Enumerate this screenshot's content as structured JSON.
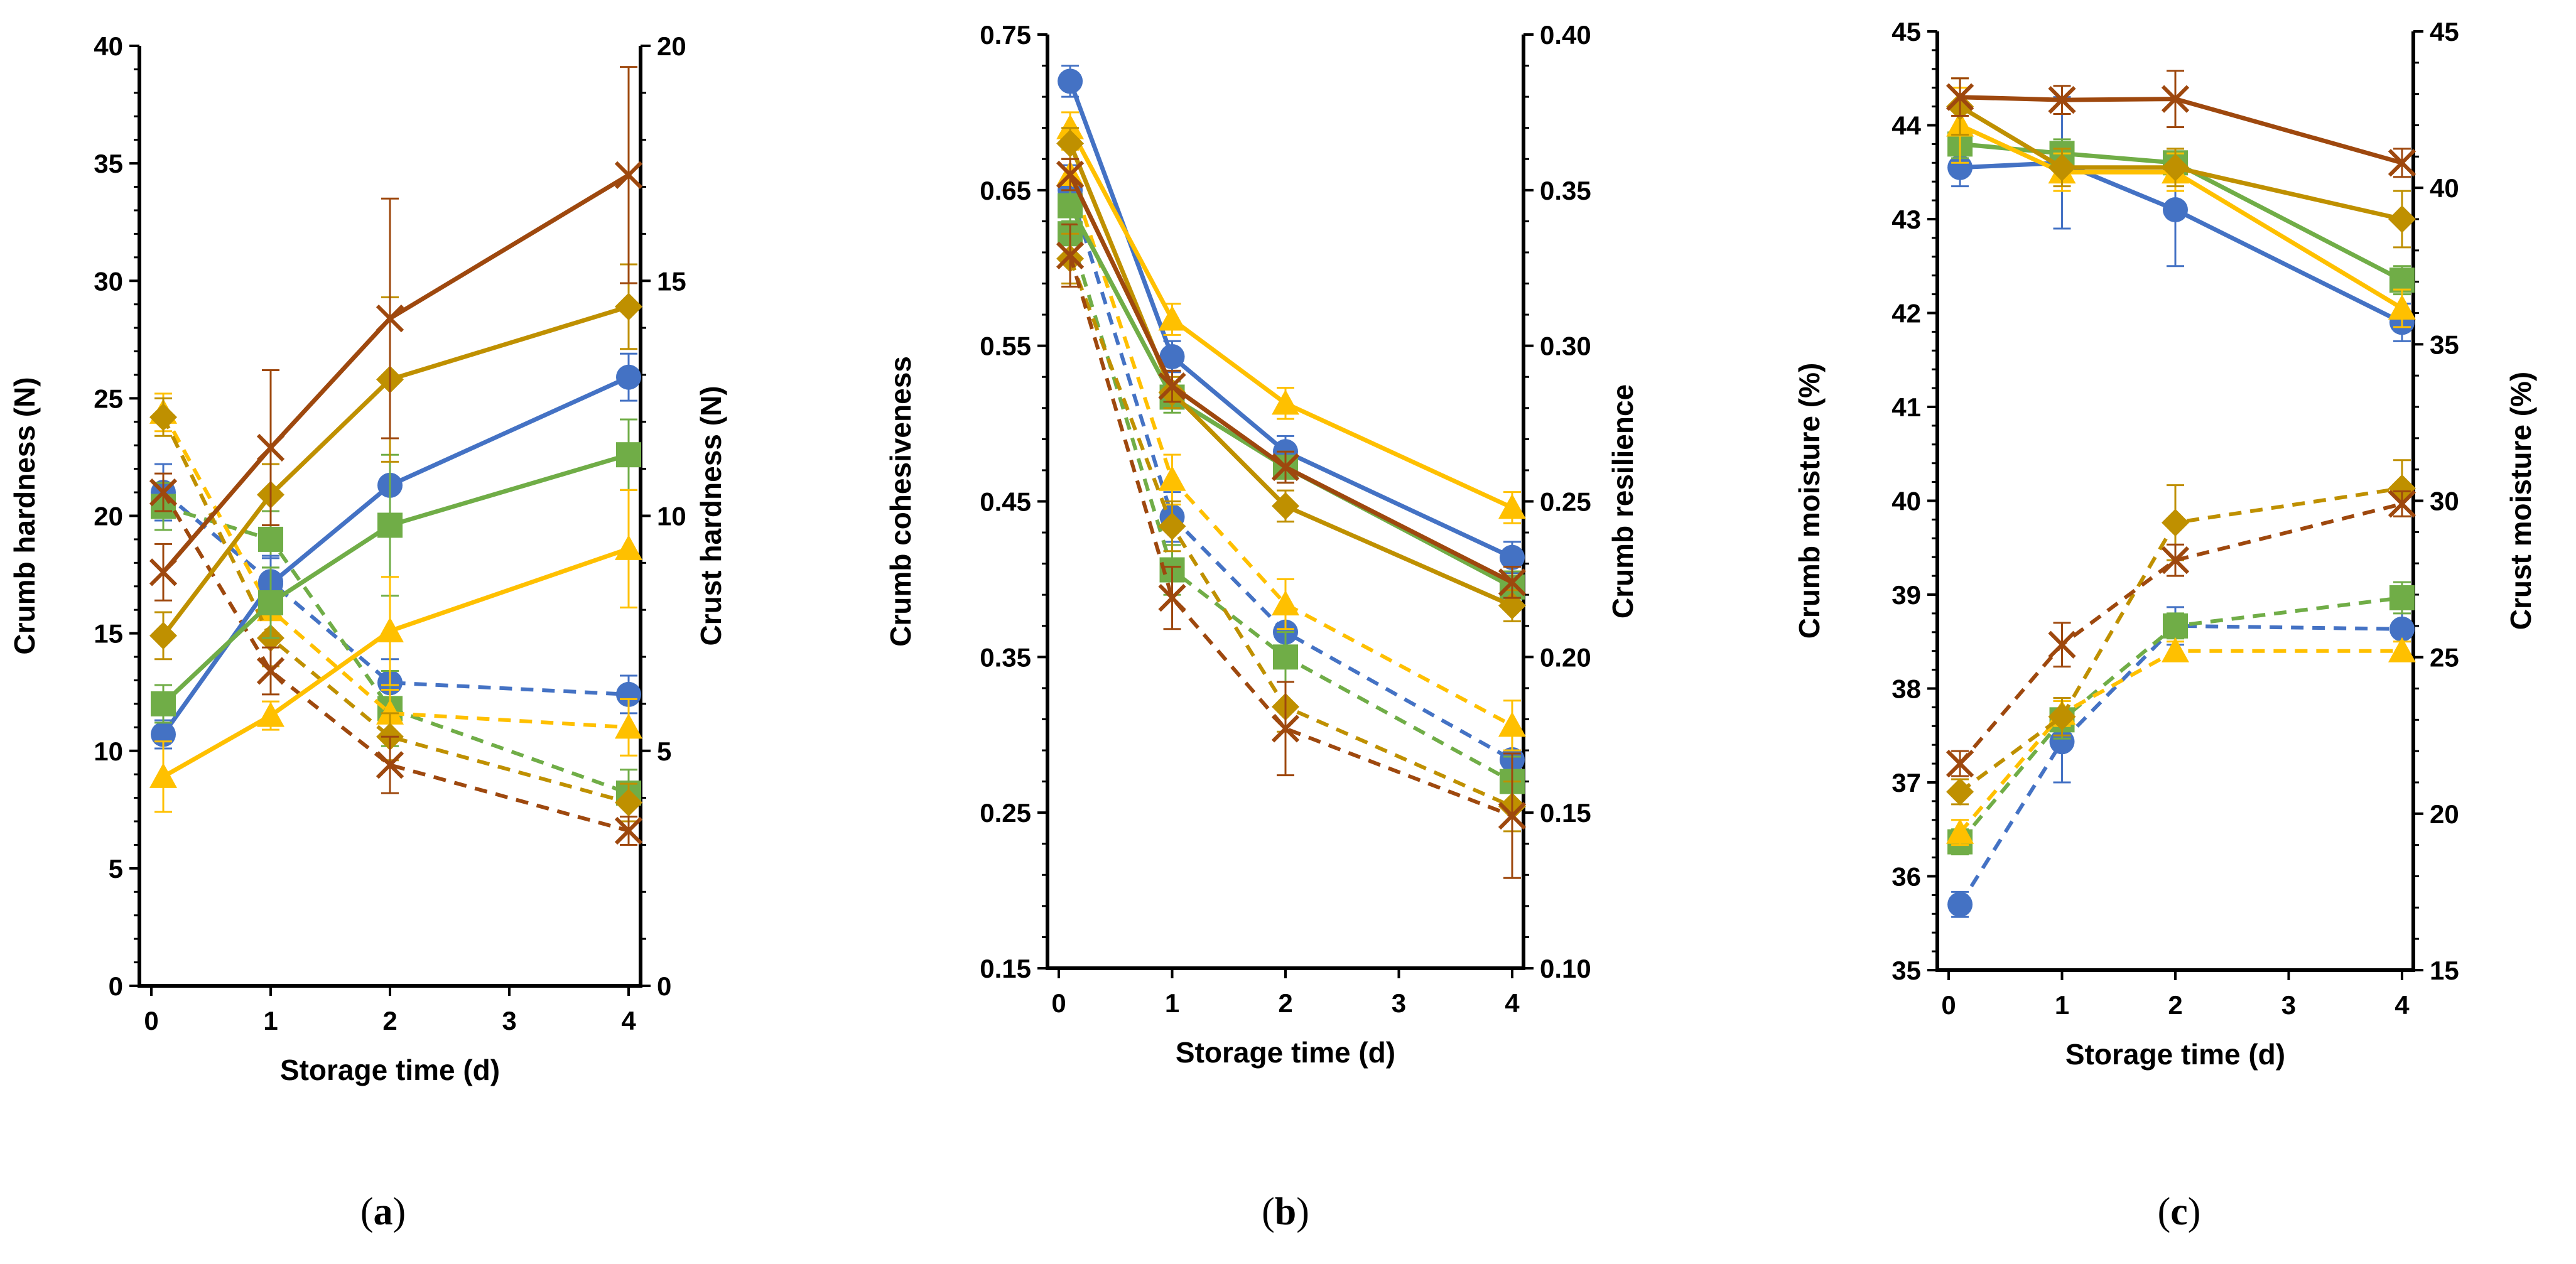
{
  "chart_data": [
    {
      "type": "line",
      "panel": "(a)",
      "panel_letter": "a",
      "xlabel": "Storage time (d)",
      "ylabel_left": "Crumb hardness (N)",
      "ylabel_right": "Crust hardness (N)",
      "x_ticks": [
        0,
        1,
        2,
        3,
        4
      ],
      "xlim": [
        -0.1,
        4.1
      ],
      "ylim_left": [
        0,
        40
      ],
      "ylim_right": [
        0,
        20
      ],
      "y_ticks_left": [
        0,
        5,
        10,
        15,
        20,
        25,
        30,
        35,
        40
      ],
      "y_ticks_right": [
        0,
        5,
        10,
        15,
        20
      ],
      "series": [
        {
          "name": "crumb-blue",
          "axis": "left",
          "style": "solid",
          "color": "#4472C4",
          "marker": "circle",
          "x": [
            0.1,
            1,
            2,
            4
          ],
          "values": [
            10.7,
            17.1,
            21.3,
            25.9
          ],
          "err": [
            0.6,
            1.2,
            2.0,
            1.0
          ]
        },
        {
          "name": "crumb-green",
          "axis": "left",
          "style": "solid",
          "color": "#70AD47",
          "marker": "square",
          "x": [
            0.1,
            1,
            2,
            4
          ],
          "values": [
            12.0,
            16.3,
            19.6,
            22.6
          ],
          "err": [
            0.8,
            1.5,
            3.0,
            1.5
          ]
        },
        {
          "name": "crumb-yellow",
          "axis": "left",
          "style": "solid",
          "color": "#FFC000",
          "marker": "triangle",
          "x": [
            0.1,
            1,
            2,
            4
          ],
          "values": [
            8.9,
            11.5,
            15.1,
            18.6
          ],
          "err": [
            1.5,
            0.6,
            2.3,
            2.5
          ]
        },
        {
          "name": "crumb-gold",
          "axis": "left",
          "style": "solid",
          "color": "#BF9000",
          "marker": "diamond",
          "x": [
            0.1,
            1,
            2,
            4
          ],
          "values": [
            14.9,
            20.9,
            25.8,
            28.9
          ],
          "err": [
            1.0,
            1.3,
            3.5,
            1.8
          ]
        },
        {
          "name": "crumb-brown",
          "axis": "left",
          "style": "solid",
          "color": "#9E480E",
          "marker": "x",
          "x": [
            0.1,
            1,
            2,
            4
          ],
          "values": [
            17.6,
            22.9,
            28.4,
            34.5
          ],
          "err": [
            1.2,
            3.3,
            5.1,
            4.6
          ]
        },
        {
          "name": "crust-blue",
          "axis": "right",
          "style": "dashed",
          "color": "#4472C4",
          "marker": "circle",
          "x": [
            0.1,
            1,
            2,
            4
          ],
          "values": [
            10.5,
            8.6,
            6.45,
            6.2
          ],
          "err": [
            0.6,
            0.5,
            0.5,
            0.4
          ]
        },
        {
          "name": "crust-green",
          "axis": "right",
          "style": "dashed",
          "color": "#70AD47",
          "marker": "square",
          "x": [
            0.1,
            1,
            2,
            4
          ],
          "values": [
            10.2,
            9.5,
            5.9,
            4.1
          ],
          "err": [
            0.5,
            0.6,
            0.8,
            0.5
          ]
        },
        {
          "name": "crust-yellow",
          "axis": "right",
          "style": "dashed",
          "color": "#FFC000",
          "marker": "triangle",
          "x": [
            0.1,
            1,
            2,
            4
          ],
          "values": [
            12.2,
            8.0,
            5.8,
            5.5
          ],
          "err": [
            0.4,
            0.5,
            0.5,
            0.6
          ]
        },
        {
          "name": "crust-gold",
          "axis": "right",
          "style": "dashed",
          "color": "#BF9000",
          "marker": "diamond",
          "x": [
            0.1,
            1,
            2,
            4
          ],
          "values": [
            12.1,
            7.4,
            5.3,
            3.9
          ],
          "err": [
            0.4,
            0.6,
            0.5,
            0.4
          ]
        },
        {
          "name": "crust-brown",
          "axis": "right",
          "style": "dashed",
          "color": "#9E480E",
          "marker": "x",
          "x": [
            0.1,
            1,
            2,
            4
          ],
          "values": [
            10.5,
            6.7,
            4.7,
            3.3
          ],
          "err": [
            0.4,
            0.5,
            0.6,
            0.3
          ]
        }
      ]
    },
    {
      "type": "line",
      "panel": "(b)",
      "panel_letter": "b",
      "xlabel": "Storage time (d)",
      "ylabel_left": "Crumb cohesiveness",
      "ylabel_right": "Crumb resilience",
      "x_ticks": [
        0,
        1,
        2,
        3,
        4
      ],
      "xlim": [
        -0.1,
        4.1
      ],
      "ylim_left": [
        0.15,
        0.75
      ],
      "ylim_right": [
        0.1,
        0.4
      ],
      "y_ticks_left": [
        "0.15",
        "0.25",
        "0.35",
        "0.45",
        "0.55",
        "0.65",
        "0.75"
      ],
      "y_ticks_right": [
        "0.10",
        "0.15",
        "0.20",
        "0.25",
        "0.30",
        "0.35",
        "0.40"
      ],
      "series": [
        {
          "name": "cohesiveness-blue",
          "axis": "left",
          "style": "solid",
          "color": "#4472C4",
          "marker": "circle",
          "x": [
            0.1,
            1,
            2,
            4
          ],
          "values": [
            0.72,
            0.543,
            0.482,
            0.414
          ],
          "err": [
            0.01,
            0.01,
            0.01,
            0.01
          ]
        },
        {
          "name": "cohesiveness-green",
          "axis": "left",
          "style": "solid",
          "color": "#70AD47",
          "marker": "square",
          "x": [
            0.1,
            1,
            2,
            4
          ],
          "values": [
            0.64,
            0.517,
            0.472,
            0.395
          ],
          "err": [
            0.01,
            0.01,
            0.01,
            0.01
          ]
        },
        {
          "name": "cohesiveness-yellow",
          "axis": "left",
          "style": "solid",
          "color": "#FFC000",
          "marker": "triangle",
          "x": [
            0.1,
            1,
            2,
            4
          ],
          "values": [
            0.69,
            0.567,
            0.513,
            0.446
          ],
          "err": [
            0.01,
            0.01,
            0.01,
            0.01
          ]
        },
        {
          "name": "cohesiveness-gold",
          "axis": "left",
          "style": "solid",
          "color": "#BF9000",
          "marker": "diamond",
          "x": [
            0.1,
            1,
            2,
            4
          ],
          "values": [
            0.68,
            0.52,
            0.447,
            0.383
          ],
          "err": [
            0.01,
            0.01,
            0.01,
            0.01
          ]
        },
        {
          "name": "cohesiveness-brown",
          "axis": "left",
          "style": "solid",
          "color": "#9E480E",
          "marker": "x",
          "x": [
            0.1,
            1,
            2,
            4
          ],
          "values": [
            0.66,
            0.524,
            0.472,
            0.398
          ],
          "err": [
            0.01,
            0.01,
            0.01,
            0.01
          ]
        },
        {
          "name": "resilience-blue",
          "axis": "right",
          "style": "dashed",
          "color": "#4472C4",
          "marker": "circle",
          "x": [
            0.1,
            1,
            2,
            4
          ],
          "values": [
            0.35,
            0.245,
            0.208,
            0.167
          ],
          "err": [
            0.008,
            0.008,
            0.008,
            0.008
          ]
        },
        {
          "name": "resilience-green",
          "axis": "right",
          "style": "dashed",
          "color": "#70AD47",
          "marker": "square",
          "x": [
            0.1,
            1,
            2,
            4
          ],
          "values": [
            0.336,
            0.228,
            0.2,
            0.16
          ],
          "err": [
            0.008,
            0.008,
            0.008,
            0.008
          ]
        },
        {
          "name": "resilience-yellow",
          "axis": "right",
          "style": "dashed",
          "color": "#FFC000",
          "marker": "triangle",
          "x": [
            0.1,
            1,
            2,
            4
          ],
          "values": [
            0.355,
            0.257,
            0.217,
            0.178
          ],
          "err": [
            0.008,
            0.008,
            0.008,
            0.008
          ]
        },
        {
          "name": "resilience-gold",
          "axis": "right",
          "style": "dashed",
          "color": "#BF9000",
          "marker": "diamond",
          "x": [
            0.1,
            1,
            2,
            4
          ],
          "values": [
            0.328,
            0.242,
            0.184,
            0.152
          ],
          "err": [
            0.008,
            0.008,
            0.008,
            0.008
          ]
        },
        {
          "name": "resilience-brown",
          "axis": "right",
          "style": "dashed",
          "color": "#9E480E",
          "marker": "x",
          "x": [
            0.1,
            1,
            2,
            4
          ],
          "values": [
            0.329,
            0.219,
            0.177,
            0.149
          ],
          "err": [
            0.01,
            0.01,
            0.015,
            0.02
          ]
        }
      ]
    },
    {
      "type": "line",
      "panel": "(c)",
      "panel_letter": "c",
      "xlabel": "Storage time (d)",
      "ylabel_left": "Crumb moisture (%)",
      "ylabel_right": "Crust  moisture (%)",
      "x_ticks": [
        0,
        1,
        2,
        3,
        4
      ],
      "xlim": [
        -0.1,
        4.1
      ],
      "ylim_left": [
        35,
        45
      ],
      "ylim_right": [
        15,
        45
      ],
      "y_ticks_left": [
        35,
        36,
        37,
        38,
        39,
        40,
        41,
        42,
        43,
        44,
        45
      ],
      "y_ticks_right": [
        15,
        20,
        25,
        30,
        35,
        40,
        45
      ],
      "series": [
        {
          "name": "crumb-moisture-blue",
          "axis": "left",
          "style": "solid",
          "color": "#4472C4",
          "marker": "circle",
          "x": [
            0.1,
            1,
            2,
            4
          ],
          "values": [
            43.55,
            43.6,
            43.1,
            41.9
          ],
          "err": [
            0.2,
            0.7,
            0.6,
            0.2
          ]
        },
        {
          "name": "crumb-moisture-green",
          "axis": "left",
          "style": "solid",
          "color": "#70AD47",
          "marker": "square",
          "x": [
            0.1,
            1,
            2,
            4
          ],
          "values": [
            43.8,
            43.7,
            43.6,
            42.35
          ],
          "err": [
            0.15,
            0.15,
            0.15,
            0.15
          ]
        },
        {
          "name": "crumb-moisture-yellow",
          "axis": "left",
          "style": "solid",
          "color": "#FFC000",
          "marker": "triangle",
          "x": [
            0.1,
            1,
            2,
            4
          ],
          "values": [
            44.0,
            43.5,
            43.5,
            42.05
          ],
          "err": [
            0.4,
            0.2,
            0.2,
            0.2
          ]
        },
        {
          "name": "crumb-moisture-gold",
          "axis": "left",
          "style": "solid",
          "color": "#BF9000",
          "marker": "diamond",
          "x": [
            0.1,
            1,
            2,
            4
          ],
          "values": [
            44.2,
            43.55,
            43.55,
            43.0
          ],
          "err": [
            0.3,
            0.2,
            0.2,
            0.3
          ]
        },
        {
          "name": "crumb-moisture-brown",
          "axis": "left",
          "style": "solid",
          "color": "#9E480E",
          "marker": "x",
          "x": [
            0.1,
            1,
            2,
            4
          ],
          "values": [
            44.3,
            44.27,
            44.28,
            43.6
          ],
          "err": [
            0.2,
            0.15,
            0.3,
            0.15
          ]
        },
        {
          "name": "crust-moisture-blue",
          "axis": "right",
          "style": "dashed",
          "color": "#4472C4",
          "marker": "circle",
          "x": [
            0.1,
            1,
            2,
            4
          ],
          "values": [
            17.1,
            22.3,
            26.0,
            25.9
          ],
          "err": [
            0.4,
            1.3,
            0.6,
            0.9
          ]
        },
        {
          "name": "crust-moisture-green",
          "axis": "right",
          "style": "dashed",
          "color": "#70AD47",
          "marker": "square",
          "x": [
            0.1,
            1,
            2,
            4
          ],
          "values": [
            19.1,
            23.0,
            26.0,
            26.9
          ],
          "err": [
            0.4,
            0.6,
            0.4,
            0.5
          ]
        },
        {
          "name": "crust-moisture-yellow",
          "axis": "right",
          "style": "dashed",
          "color": "#FFC000",
          "marker": "triangle",
          "x": [
            0.1,
            1,
            2,
            4
          ],
          "values": [
            19.4,
            23.2,
            25.2,
            25.2
          ],
          "err": [
            0.4,
            0.4,
            0.3,
            0.3
          ]
        },
        {
          "name": "crust-moisture-gold",
          "axis": "right",
          "style": "dashed",
          "color": "#BF9000",
          "marker": "diamond",
          "x": [
            0.1,
            1,
            2,
            4
          ],
          "values": [
            20.7,
            23.1,
            29.3,
            30.4
          ],
          "err": [
            0.4,
            0.6,
            1.2,
            0.9
          ]
        },
        {
          "name": "crust-moisture-brown",
          "axis": "right",
          "style": "dashed",
          "color": "#9E480E",
          "marker": "x",
          "x": [
            0.1,
            1,
            2,
            4
          ],
          "values": [
            21.6,
            25.4,
            28.1,
            29.9
          ],
          "err": [
            0.4,
            0.7,
            0.5,
            0.4
          ]
        }
      ]
    }
  ]
}
